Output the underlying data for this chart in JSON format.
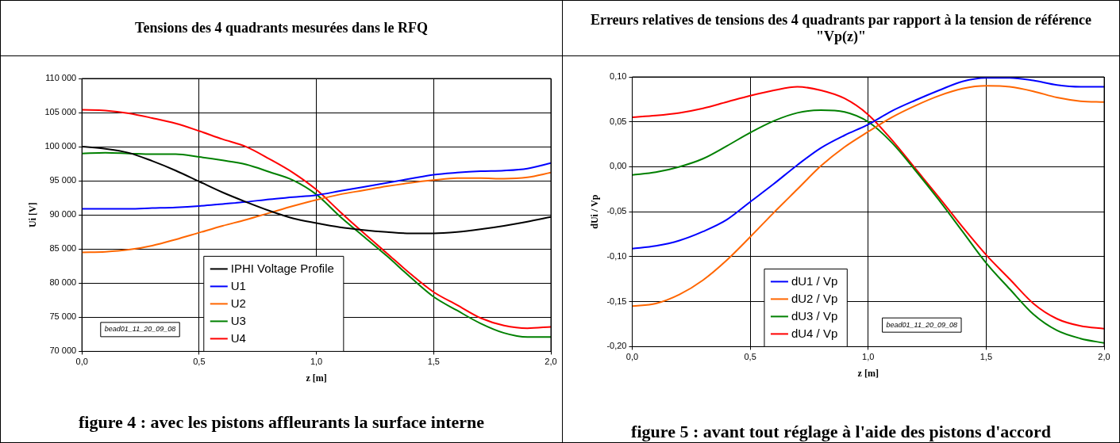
{
  "chart_data": [
    {
      "type": "line",
      "title": "Tensions des 4 quadrants mesurées dans le RFQ",
      "xlabel": "z [m]",
      "ylabel": "Ui [V]",
      "x": [
        0,
        0.1,
        0.2,
        0.3,
        0.4,
        0.5,
        0.6,
        0.7,
        0.8,
        0.9,
        1.0,
        1.1,
        1.2,
        1.3,
        1.4,
        1.5,
        1.6,
        1.7,
        1.8,
        1.9,
        2.0
      ],
      "series": [
        {
          "name": "IPHI Voltage Profile",
          "color": "#000000",
          "values": [
            100000,
            99700,
            99100,
            97900,
            96500,
            94900,
            93300,
            91900,
            90600,
            89500,
            88800,
            88200,
            87800,
            87500,
            87300,
            87300,
            87500,
            87900,
            88400,
            89000,
            89700
          ]
        },
        {
          "name": "U1",
          "color": "#0000ff",
          "values": [
            90900,
            90900,
            90900,
            91000,
            91100,
            91300,
            91600,
            91900,
            92300,
            92600,
            92900,
            93500,
            94100,
            94700,
            95300,
            95900,
            96200,
            96400,
            96500,
            96800,
            97600
          ]
        },
        {
          "name": "U2",
          "color": "#ff6600",
          "values": [
            84500,
            84600,
            84900,
            85500,
            86400,
            87400,
            88400,
            89300,
            90300,
            91300,
            92200,
            93000,
            93600,
            94200,
            94700,
            95100,
            95400,
            95400,
            95300,
            95500,
            96200
          ]
        },
        {
          "name": "U3",
          "color": "#008000",
          "values": [
            99000,
            99100,
            99000,
            98900,
            98900,
            98500,
            98000,
            97400,
            96300,
            95100,
            93000,
            89800,
            86900,
            84000,
            80900,
            78000,
            76000,
            74100,
            72700,
            72100,
            72100
          ]
        },
        {
          "name": "U4",
          "color": "#ff0000",
          "values": [
            105400,
            105300,
            104900,
            104200,
            103400,
            102300,
            101100,
            100000,
            98200,
            96200,
            93700,
            90500,
            87400,
            84400,
            81400,
            78700,
            76800,
            74900,
            73800,
            73400,
            73600
          ]
        }
      ],
      "xlim": [
        0,
        2
      ],
      "xticks": [
        {
          "value": 0,
          "label": "0,0"
        },
        {
          "value": 0.5,
          "label": "0,5"
        },
        {
          "value": 1,
          "label": "1,0"
        },
        {
          "value": 1.5,
          "label": "1,5"
        },
        {
          "value": 2,
          "label": "2,0"
        }
      ],
      "ylim": [
        70000,
        110000
      ],
      "yticks": [
        {
          "value": 70000,
          "label": "70 000"
        },
        {
          "value": 75000,
          "label": "75 000"
        },
        {
          "value": 80000,
          "label": "80 000"
        },
        {
          "value": 85000,
          "label": "85 000"
        },
        {
          "value": 90000,
          "label": "90 000"
        },
        {
          "value": 95000,
          "label": "95 000"
        },
        {
          "value": 100000,
          "label": "100 000"
        },
        {
          "value": 105000,
          "label": "105 000"
        },
        {
          "value": 110000,
          "label": "110 000"
        }
      ],
      "grid": true,
      "legend": "bottom",
      "annotations": [
        "bead01_11_20_09_08",
        "figure 4 : avec les pistons affleurants la surface interne"
      ]
    },
    {
      "type": "line",
      "title": "Erreurs relatives de tensions des 4 quadrants par rapport à la tension de référence \"Vp(z)\"",
      "xlabel": "z [m]",
      "ylabel": "dUi / Vp",
      "x": [
        0,
        0.1,
        0.2,
        0.3,
        0.4,
        0.5,
        0.6,
        0.7,
        0.8,
        0.9,
        1.0,
        1.1,
        1.2,
        1.3,
        1.4,
        1.5,
        1.6,
        1.7,
        1.8,
        1.9,
        2.0
      ],
      "series": [
        {
          "name": "dU1 / Vp",
          "color": "#0000ff",
          "values": [
            -0.091,
            -0.088,
            -0.082,
            -0.072,
            -0.059,
            -0.039,
            -0.019,
            0.002,
            0.021,
            0.035,
            0.047,
            0.062,
            0.074,
            0.085,
            0.095,
            0.099,
            0.099,
            0.096,
            0.091,
            0.089,
            0.089
          ]
        },
        {
          "name": "dU2 / Vp",
          "color": "#ff6600",
          "values": [
            -0.155,
            -0.152,
            -0.142,
            -0.126,
            -0.104,
            -0.078,
            -0.051,
            -0.025,
            0.001,
            0.022,
            0.039,
            0.055,
            0.068,
            0.079,
            0.087,
            0.09,
            0.089,
            0.084,
            0.077,
            0.073,
            0.072
          ]
        },
        {
          "name": "dU3 / Vp",
          "color": "#008000",
          "values": [
            -0.009,
            -0.006,
            0.0,
            0.009,
            0.023,
            0.038,
            0.051,
            0.06,
            0.063,
            0.061,
            0.05,
            0.027,
            -0.004,
            -0.037,
            -0.072,
            -0.107,
            -0.136,
            -0.164,
            -0.182,
            -0.191,
            -0.196
          ]
        },
        {
          "name": "dU4 / Vp",
          "color": "#ff0000",
          "values": [
            0.055,
            0.057,
            0.06,
            0.065,
            0.072,
            0.079,
            0.085,
            0.089,
            0.085,
            0.076,
            0.058,
            0.03,
            -0.002,
            -0.034,
            -0.067,
            -0.098,
            -0.125,
            -0.152,
            -0.169,
            -0.177,
            -0.18
          ]
        }
      ],
      "xlim": [
        0,
        2
      ],
      "xticks": [
        {
          "value": 0,
          "label": "0,0"
        },
        {
          "value": 0.5,
          "label": "0,5"
        },
        {
          "value": 1,
          "label": "1,0"
        },
        {
          "value": 1.5,
          "label": "1,5"
        },
        {
          "value": 2,
          "label": "2,0"
        }
      ],
      "ylim": [
        -0.2,
        0.1
      ],
      "yticks": [
        {
          "value": -0.2,
          "label": "-0,20"
        },
        {
          "value": -0.15,
          "label": "-0,15"
        },
        {
          "value": -0.1,
          "label": "-0,10"
        },
        {
          "value": -0.05,
          "label": "-0,05"
        },
        {
          "value": 0,
          "label": "0,00"
        },
        {
          "value": 0.05,
          "label": "0,05"
        },
        {
          "value": 0.1,
          "label": "0,10"
        }
      ],
      "grid": true,
      "legend": "bottom",
      "annotations": [
        "bead01_11_20_09_08",
        "figure 5 : avant tout réglage à l'aide des pistons d'accord"
      ]
    }
  ]
}
